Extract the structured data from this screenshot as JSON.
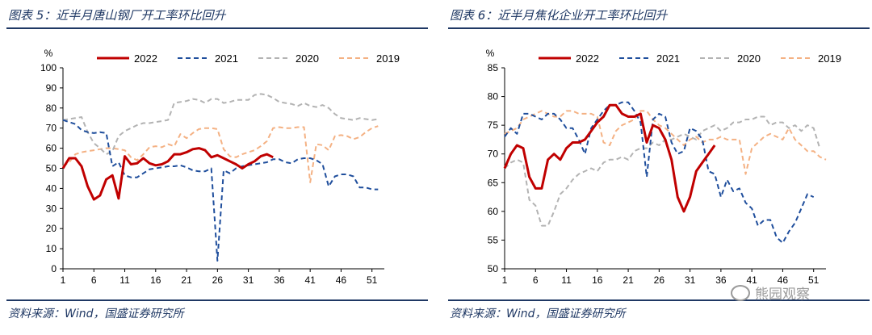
{
  "figures": [
    {
      "title": "图表 5：近半月唐山钢厂开工率环比回升",
      "source": "资料来源：Wind，国盛证券研究所"
    },
    {
      "title": "图表 6：近半月焦化企业开工率环比回升",
      "source": "资料来源：Wind，国盛证券研究所"
    }
  ],
  "watermark": "熊园观察",
  "chart_data": [
    {
      "type": "line",
      "ylabel": "%",
      "ylim": [
        0,
        100
      ],
      "yticks": [
        0,
        10,
        20,
        30,
        40,
        50,
        60,
        70,
        80,
        90,
        100
      ],
      "xlim": [
        1,
        53
      ],
      "xticks": [
        1,
        6,
        11,
        16,
        21,
        26,
        31,
        36,
        41,
        46,
        51
      ],
      "legend_position": "top",
      "series": [
        {
          "name": "2022",
          "color": "#c00000",
          "dash": "solid",
          "width": 3,
          "values": [
            50,
            55,
            55,
            51,
            41,
            34.5,
            36.5,
            44.5,
            46.5,
            35,
            56,
            52,
            52.5,
            55,
            52.5,
            51.5,
            52,
            53.5,
            57,
            57,
            58,
            59.5,
            60,
            59,
            55.5,
            56.5,
            55,
            53.5,
            52,
            50,
            52,
            53.5,
            56,
            57,
            55.5
          ]
        },
        {
          "name": "2021",
          "color": "#1f4e9c",
          "dash": "6,4",
          "width": 2,
          "values": [
            74,
            73,
            72,
            69,
            68,
            67.5,
            68,
            67.5,
            51,
            53,
            46.5,
            45.5,
            45.5,
            47.5,
            49.5,
            50,
            50.5,
            51,
            51,
            51.5,
            50.5,
            49,
            48.5,
            48.5,
            50,
            4,
            49,
            47.5,
            50,
            51,
            51.5,
            52,
            52.5,
            53,
            54.5,
            54.5,
            53,
            52.5,
            54.5,
            55,
            55,
            54,
            52,
            41,
            46,
            47,
            47,
            46,
            40.5,
            40.5,
            39.5,
            39.5
          ]
        },
        {
          "name": "2020",
          "color": "#b3b3b3",
          "dash": "6,4",
          "width": 2,
          "values": [
            74,
            74.5,
            75,
            75.5,
            68,
            62.5,
            60,
            57,
            58.5,
            66,
            68.5,
            70,
            71.5,
            72.5,
            72.5,
            73,
            73.5,
            74,
            82.5,
            83,
            83.5,
            84.5,
            84,
            82.5,
            84.5,
            84.5,
            82.5,
            83,
            84,
            84,
            84,
            86.5,
            87,
            86.5,
            85,
            83,
            82.5,
            82,
            81,
            82.5,
            81,
            80.5,
            81.5,
            80,
            77,
            75,
            74.5,
            74,
            75,
            74.5,
            74,
            74.5
          ]
        },
        {
          "name": "2019",
          "color": "#f4b183",
          "dash": "6,4",
          "width": 2,
          "values": [
            51,
            53,
            57,
            58,
            58.5,
            59,
            59.5,
            60,
            60,
            59.5,
            59,
            55.5,
            54,
            57,
            60.5,
            61,
            60.5,
            62,
            61,
            67,
            65,
            67.5,
            69.5,
            70,
            70,
            69.5,
            59.5,
            56,
            55.5,
            57,
            58,
            59,
            61,
            63.5,
            70,
            70.5,
            70,
            70,
            70.5,
            70.5,
            43,
            62,
            61.5,
            59,
            66,
            66.5,
            66,
            64.5,
            65.5,
            68,
            70,
            71
          ]
        }
      ]
    },
    {
      "type": "line",
      "ylabel": "%",
      "ylim": [
        50,
        85
      ],
      "yticks": [
        50,
        55,
        60,
        65,
        70,
        75,
        80,
        85
      ],
      "xlim": [
        1,
        53
      ],
      "xticks": [
        1,
        6,
        11,
        16,
        21,
        26,
        31,
        36,
        41,
        46,
        51
      ],
      "legend_position": "top",
      "series": [
        {
          "name": "2022",
          "color": "#c00000",
          "dash": "solid",
          "width": 3,
          "values": [
            67.5,
            70,
            71.5,
            71,
            66,
            64,
            64,
            69,
            70,
            69,
            71,
            72,
            72,
            72.5,
            74,
            75.5,
            76.5,
            78.5,
            78.5,
            77,
            76.5,
            76.5,
            77,
            72,
            75,
            74.5,
            72.5,
            69,
            62.5,
            60,
            62.5,
            67,
            68.5,
            70,
            71.5
          ]
        },
        {
          "name": "2021",
          "color": "#1f4e9c",
          "dash": "6,4",
          "width": 2,
          "values": [
            73,
            74.5,
            73.5,
            77,
            77,
            76.5,
            76,
            77,
            77,
            76,
            74.5,
            74.5,
            72.5,
            70,
            74.5,
            76,
            77.5,
            78.5,
            78.5,
            79,
            79,
            77.5,
            75.5,
            66,
            76,
            77,
            76.5,
            72,
            70,
            70.5,
            74.5,
            74,
            72.5,
            67,
            66.5,
            62.5,
            65.5,
            63.5,
            64,
            61.5,
            60.5,
            57.5,
            58.5,
            58.5,
            55.5,
            54.5,
            56.5,
            58,
            60.5,
            63,
            62.5
          ]
        },
        {
          "name": "2020",
          "color": "#b3b3b3",
          "dash": "6,4",
          "width": 2,
          "values": [
            67.5,
            68.5,
            69,
            68.5,
            62,
            61,
            57.5,
            57.5,
            60,
            63,
            64,
            65.5,
            66.5,
            67,
            67.5,
            67,
            68.5,
            69,
            69,
            69.5,
            69,
            70.5,
            71,
            71,
            72,
            71.5,
            72.5,
            72.5,
            73,
            73.5,
            73,
            72.5,
            74,
            74.5,
            75,
            74,
            74.5,
            75.5,
            75.5,
            76,
            76,
            76.5,
            76.5,
            75,
            75.5,
            75.5,
            74.5,
            75,
            74,
            75,
            74.5,
            71
          ]
        },
        {
          "name": "2019",
          "color": "#f4b183",
          "dash": "6,4",
          "width": 2,
          "values": [
            73.5,
            74,
            74.5,
            76,
            76.5,
            77,
            77.5,
            77,
            76.5,
            76.5,
            77.5,
            77.5,
            77,
            77,
            77,
            76.5,
            72,
            71.5,
            74,
            75,
            75.5,
            76,
            77.5,
            77.5,
            76,
            75,
            74.5,
            73.5,
            72.5,
            71.5,
            72.5,
            73,
            72,
            72.5,
            72.5,
            73,
            72.5,
            72.5,
            72.5,
            66.5,
            71,
            72,
            73,
            73.5,
            73,
            72.5,
            74.5,
            72.5,
            71.5,
            70.5,
            70.5,
            69.5,
            69
          ]
        }
      ]
    }
  ]
}
